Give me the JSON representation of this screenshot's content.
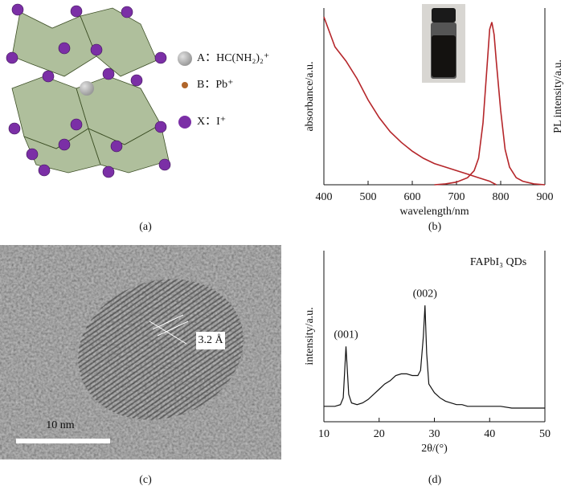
{
  "panel_labels": [
    "(a)",
    "(b)",
    "(c)",
    "(d)"
  ],
  "structure": {
    "legend": [
      "A：HC(NH₂)₂⁺",
      "B：Pb⁺",
      "X：I⁺"
    ],
    "colors": [
      "#a9a9a9",
      "#b0652a",
      "#7b2fa6"
    ]
  },
  "tem": {
    "lattice_label": "3.2 Å",
    "scale_bar_label": "10 nm"
  },
  "chart_data": [
    {
      "type": "line",
      "xlabel": "wavelength/nm",
      "ylabel": "absorbance/a.u.",
      "y2label": "PL intensity/a.u.",
      "xlim": [
        400,
        900
      ],
      "xticks": [
        400,
        500,
        600,
        700,
        800,
        900
      ],
      "ylim": [
        0,
        100
      ],
      "y2lim": [
        0,
        100
      ],
      "series": [
        {
          "color": "#b5262a",
          "x": [
            400,
            425,
            450,
            475,
            500,
            525,
            550,
            575,
            600,
            625,
            650,
            675,
            700,
            725,
            750,
            775,
            790
          ],
          "values": [
            95,
            78,
            70,
            60,
            48,
            38,
            30,
            24,
            19,
            15,
            12,
            10,
            8,
            6,
            4,
            2,
            0
          ]
        },
        {
          "color": "#b5262a",
          "axis": "y2",
          "x": [
            650,
            675,
            700,
            725,
            740,
            750,
            760,
            770,
            775,
            780,
            785,
            790,
            800,
            810,
            820,
            835,
            850,
            875,
            900
          ],
          "values": [
            0,
            0.5,
            1.5,
            4,
            8,
            15,
            35,
            70,
            88,
            92,
            85,
            70,
            42,
            20,
            10,
            4,
            2,
            0.5,
            0
          ]
        }
      ]
    },
    {
      "type": "line",
      "xlabel": "2θ/(°)",
      "ylabel": "intensity/a.u.",
      "label": "FAPbI₃ QDs",
      "xlim": [
        10,
        50
      ],
      "xticks": [
        10,
        20,
        30,
        40,
        50
      ],
      "ylim": [
        0,
        100
      ],
      "annotations": [
        {
          "text": "(001)",
          "x": 14
        },
        {
          "text": "(002)",
          "x": 28.3
        }
      ],
      "series": [
        {
          "color": "#111111",
          "x": [
            10,
            11,
            12,
            13,
            13.5,
            14,
            14.5,
            15,
            16,
            17,
            18,
            19,
            20,
            21,
            22,
            23,
            24,
            25,
            26,
            27,
            27.5,
            28,
            28.3,
            28.6,
            29,
            30,
            31,
            32,
            33,
            34,
            35,
            36,
            38,
            40,
            42,
            44,
            46,
            48,
            50
          ],
          "values": [
            9,
            9,
            9,
            10,
            14,
            44,
            16,
            11,
            10,
            11,
            13,
            16,
            19,
            22,
            24,
            27,
            28,
            28,
            27,
            27,
            30,
            50,
            68,
            40,
            22,
            17,
            14,
            12,
            11,
            10,
            10,
            9,
            9,
            9,
            9,
            8,
            8,
            8,
            8
          ]
        }
      ]
    }
  ]
}
